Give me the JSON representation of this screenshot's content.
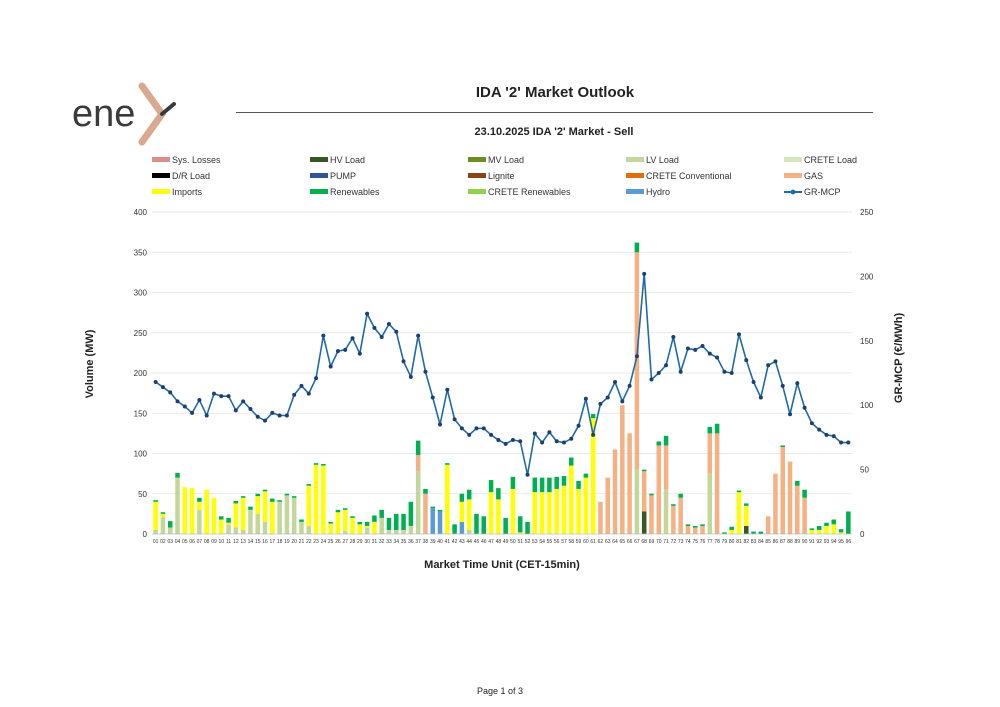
{
  "brand": {
    "logo_text": "ene",
    "logo_mark_color": "#d9a98f",
    "logo_text_color": "#3a3a3a"
  },
  "header": {
    "title": "IDA '2' Market Outlook"
  },
  "footer": {
    "page_label": "Page 1 of 3"
  },
  "colors": {
    "Sys. Losses": "#d9908c",
    "HV Load": "#375623",
    "MV Load": "#6b8e23",
    "LV Load": "#c4d79b",
    "CRETE Load": "#d8e4bc",
    "D/R Load": "#000000",
    "PUMP": "#2f5597",
    "Lignite": "#8b4513",
    "CRETE Conventional": "#e46c0a",
    "GAS": "#f4b183",
    "Imports": "#ffff00",
    "Renewables": "#00b050",
    "CRETE Renewables": "#92d050",
    "Hydro": "#5b9bd5",
    "GR-MCP": "#1f6ba7"
  },
  "chart_data": {
    "type": "bar",
    "stacked": true,
    "title": "23.10.2025  IDA '2' Market - Sell",
    "xlabel": "Market Time Unit (CET-15min)",
    "ylabel": "Volume (MW)",
    "y2label": "GR-MCP (€/MWh)",
    "ylim": [
      0,
      400
    ],
    "y2lim": [
      0,
      250
    ],
    "yticks": [
      0,
      50,
      100,
      150,
      200,
      250,
      300,
      350,
      400
    ],
    "y2ticks": [
      0,
      50,
      100,
      150,
      200,
      250
    ],
    "legend": [
      "Sys. Losses",
      "HV Load",
      "MV Load",
      "LV Load",
      "CRETE Load",
      "D/R Load",
      "PUMP",
      "Lignite",
      "CRETE Conventional",
      "GAS",
      "Imports",
      "Renewables",
      "CRETE Renewables",
      "Hydro",
      "GR-MCP"
    ],
    "categories": [
      "01",
      "02",
      "03",
      "04",
      "05",
      "06",
      "07",
      "08",
      "09",
      "10",
      "11",
      "12",
      "13",
      "14",
      "15",
      "16",
      "17",
      "18",
      "19",
      "20",
      "21",
      "22",
      "23",
      "24",
      "25",
      "26",
      "27",
      "28",
      "29",
      "30",
      "31",
      "32",
      "33",
      "34",
      "35",
      "36",
      "37",
      "38",
      "39",
      "40",
      "41",
      "42",
      "43",
      "44",
      "45",
      "46",
      "47",
      "48",
      "49",
      "50",
      "51",
      "52",
      "53",
      "54",
      "55",
      "56",
      "57",
      "58",
      "59",
      "60",
      "61",
      "62",
      "63",
      "64",
      "65",
      "66",
      "67",
      "68",
      "69",
      "70",
      "71",
      "72",
      "73",
      "74",
      "75",
      "76",
      "77",
      "78",
      "79",
      "80",
      "81",
      "82",
      "83",
      "84",
      "85",
      "86",
      "87",
      "88",
      "89",
      "90",
      "91",
      "92",
      "93",
      "94",
      "95",
      "96"
    ],
    "series": [
      {
        "name": "LV Load",
        "values": [
          5,
          21,
          8,
          70,
          0,
          0,
          30,
          0,
          0,
          0,
          12,
          8,
          5,
          30,
          25,
          15,
          0,
          40,
          48,
          45,
          15,
          10,
          0,
          0,
          0,
          0,
          4,
          0,
          0,
          8,
          0,
          20,
          5,
          5,
          5,
          10,
          78,
          0,
          0,
          0,
          0,
          0,
          0,
          5,
          0,
          0,
          0,
          0,
          0,
          0,
          0,
          0,
          0,
          0,
          0,
          0,
          0,
          0,
          0,
          0,
          0,
          0,
          0,
          0,
          0,
          0,
          80,
          0,
          0,
          0,
          55,
          0,
          0,
          0,
          0,
          0,
          75,
          0,
          0,
          0,
          0,
          0,
          0,
          0,
          0,
          0,
          0,
          0,
          0,
          0,
          0,
          0,
          0,
          0,
          0,
          0
        ]
      },
      {
        "name": "HV Load",
        "values": [
          0,
          0,
          0,
          0,
          0,
          0,
          0,
          0,
          0,
          0,
          0,
          0,
          0,
          0,
          0,
          0,
          0,
          0,
          0,
          0,
          0,
          0,
          0,
          0,
          0,
          0,
          0,
          0,
          0,
          0,
          0,
          0,
          0,
          0,
          0,
          0,
          0,
          0,
          0,
          0,
          0,
          0,
          0,
          0,
          0,
          0,
          0,
          0,
          0,
          0,
          0,
          0,
          0,
          0,
          0,
          0,
          0,
          0,
          0,
          0,
          0,
          0,
          0,
          0,
          0,
          0,
          0,
          28,
          0,
          0,
          0,
          0,
          0,
          0,
          0,
          0,
          0,
          0,
          0,
          0,
          0,
          10,
          0,
          0,
          0,
          0,
          0,
          0,
          0,
          0,
          0,
          0,
          0,
          0,
          0,
          0
        ]
      },
      {
        "name": "Hydro",
        "values": [
          0,
          0,
          0,
          0,
          0,
          0,
          0,
          0,
          0,
          0,
          0,
          0,
          0,
          0,
          0,
          0,
          0,
          0,
          0,
          0,
          0,
          0,
          0,
          0,
          0,
          0,
          0,
          0,
          0,
          0,
          0,
          0,
          0,
          0,
          0,
          0,
          0,
          0,
          32,
          28,
          0,
          0,
          15,
          0,
          0,
          0,
          0,
          0,
          0,
          0,
          0,
          0,
          0,
          0,
          0,
          0,
          0,
          0,
          0,
          0,
          0,
          0,
          0,
          0,
          0,
          0,
          0,
          0,
          0,
          0,
          0,
          0,
          0,
          0,
          0,
          0,
          0,
          0,
          0,
          0,
          0,
          0,
          0,
          0,
          0,
          0,
          0,
          0,
          0,
          0,
          0,
          0,
          0,
          0,
          0,
          0
        ]
      },
      {
        "name": "GAS",
        "values": [
          0,
          0,
          0,
          0,
          0,
          0,
          0,
          0,
          0,
          0,
          0,
          0,
          0,
          0,
          0,
          0,
          0,
          0,
          0,
          0,
          0,
          0,
          0,
          0,
          0,
          0,
          0,
          0,
          0,
          0,
          0,
          0,
          0,
          0,
          0,
          0,
          20,
          50,
          0,
          0,
          0,
          0,
          0,
          0,
          0,
          0,
          0,
          0,
          0,
          0,
          0,
          0,
          0,
          0,
          0,
          0,
          0,
          0,
          0,
          0,
          0,
          40,
          70,
          105,
          160,
          125,
          270,
          50,
          48,
          110,
          55,
          35,
          45,
          10,
          8,
          10,
          50,
          125,
          0,
          0,
          0,
          0,
          0,
          0,
          22,
          75,
          108,
          90,
          60,
          45,
          0,
          0,
          0,
          0,
          0,
          0
        ]
      },
      {
        "name": "Imports",
        "values": [
          35,
          4,
          0,
          0,
          58,
          57,
          10,
          55,
          45,
          18,
          2,
          30,
          40,
          0,
          22,
          38,
          40,
          0,
          0,
          0,
          0,
          50,
          86,
          85,
          13,
          27,
          26,
          20,
          12,
          2,
          15,
          0,
          0,
          0,
          0,
          0,
          0,
          0,
          0,
          0,
          86,
          0,
          25,
          38,
          0,
          0,
          52,
          43,
          0,
          56,
          2,
          0,
          52,
          52,
          52,
          56,
          60,
          85,
          56,
          70,
          144,
          0,
          0,
          0,
          0,
          0,
          0,
          0,
          0,
          0,
          0,
          0,
          0,
          0,
          0,
          0,
          0,
          0,
          0,
          5,
          52,
          25,
          0,
          0,
          0,
          0,
          0,
          0,
          0,
          0,
          5,
          5,
          10,
          12,
          2,
          0
        ]
      },
      {
        "name": "Renewables",
        "values": [
          2,
          2,
          8,
          6,
          0,
          0,
          5,
          0,
          0,
          4,
          6,
          3,
          2,
          4,
          3,
          2,
          4,
          2,
          2,
          2,
          3,
          2,
          2,
          2,
          2,
          3,
          2,
          2,
          3,
          5,
          8,
          10,
          15,
          20,
          20,
          30,
          18,
          6,
          2,
          2,
          2,
          12,
          10,
          12,
          25,
          22,
          15,
          14,
          20,
          15,
          20,
          15,
          18,
          18,
          18,
          15,
          12,
          10,
          10,
          5,
          5,
          0,
          0,
          0,
          0,
          0,
          12,
          2,
          2,
          5,
          12,
          2,
          5,
          2,
          2,
          2,
          8,
          12,
          2,
          4,
          2,
          3,
          3,
          3,
          0,
          0,
          2,
          0,
          6,
          10,
          2,
          5,
          4,
          6,
          4,
          28
        ]
      }
    ],
    "line": {
      "name": "GR-MCP",
      "axis": "right",
      "values": [
        118,
        114,
        110,
        103,
        99,
        94,
        104,
        92,
        109,
        107,
        107,
        96,
        103,
        97,
        91,
        88,
        94,
        92,
        92,
        108,
        115,
        109,
        121,
        154,
        130,
        142,
        143,
        152,
        140,
        171,
        160,
        153,
        163,
        157,
        134,
        122,
        154,
        126,
        106,
        85,
        112,
        89,
        82,
        77,
        82,
        82,
        77,
        73,
        70,
        73,
        72,
        46,
        78,
        71,
        79,
        72,
        71,
        74,
        84,
        105,
        77,
        101,
        106,
        118,
        103,
        115,
        138,
        202,
        120,
        125,
        131,
        153,
        126,
        144,
        143,
        146,
        140,
        137,
        126,
        125,
        155,
        135,
        118,
        106,
        131,
        134,
        115,
        93,
        117,
        98,
        86,
        81,
        77,
        76,
        71,
        71
      ]
    }
  }
}
